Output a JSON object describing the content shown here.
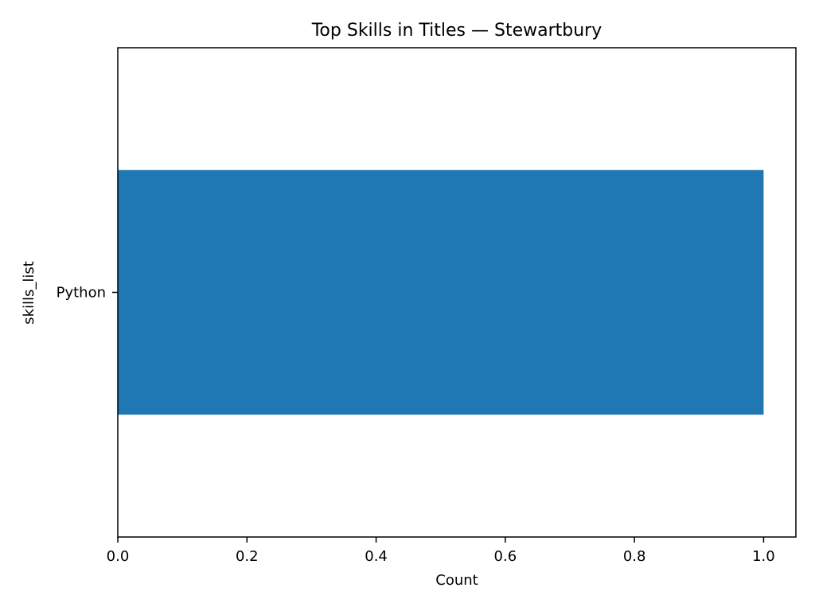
{
  "chart_data": {
    "type": "bar",
    "orientation": "horizontal",
    "title": "Top Skills in Titles — Stewartbury",
    "xlabel": "Count",
    "ylabel": "skills_list",
    "categories": [
      "Python"
    ],
    "values": [
      1.0
    ],
    "xlim": [
      0,
      1.05
    ],
    "x_ticks": [
      0.0,
      0.2,
      0.4,
      0.6,
      0.8,
      1.0
    ],
    "x_tick_labels": [
      "0.0",
      "0.2",
      "0.4",
      "0.6",
      "0.8",
      "1.0"
    ],
    "grid": false,
    "legend": "none",
    "bar_color": "#1f77b4"
  }
}
